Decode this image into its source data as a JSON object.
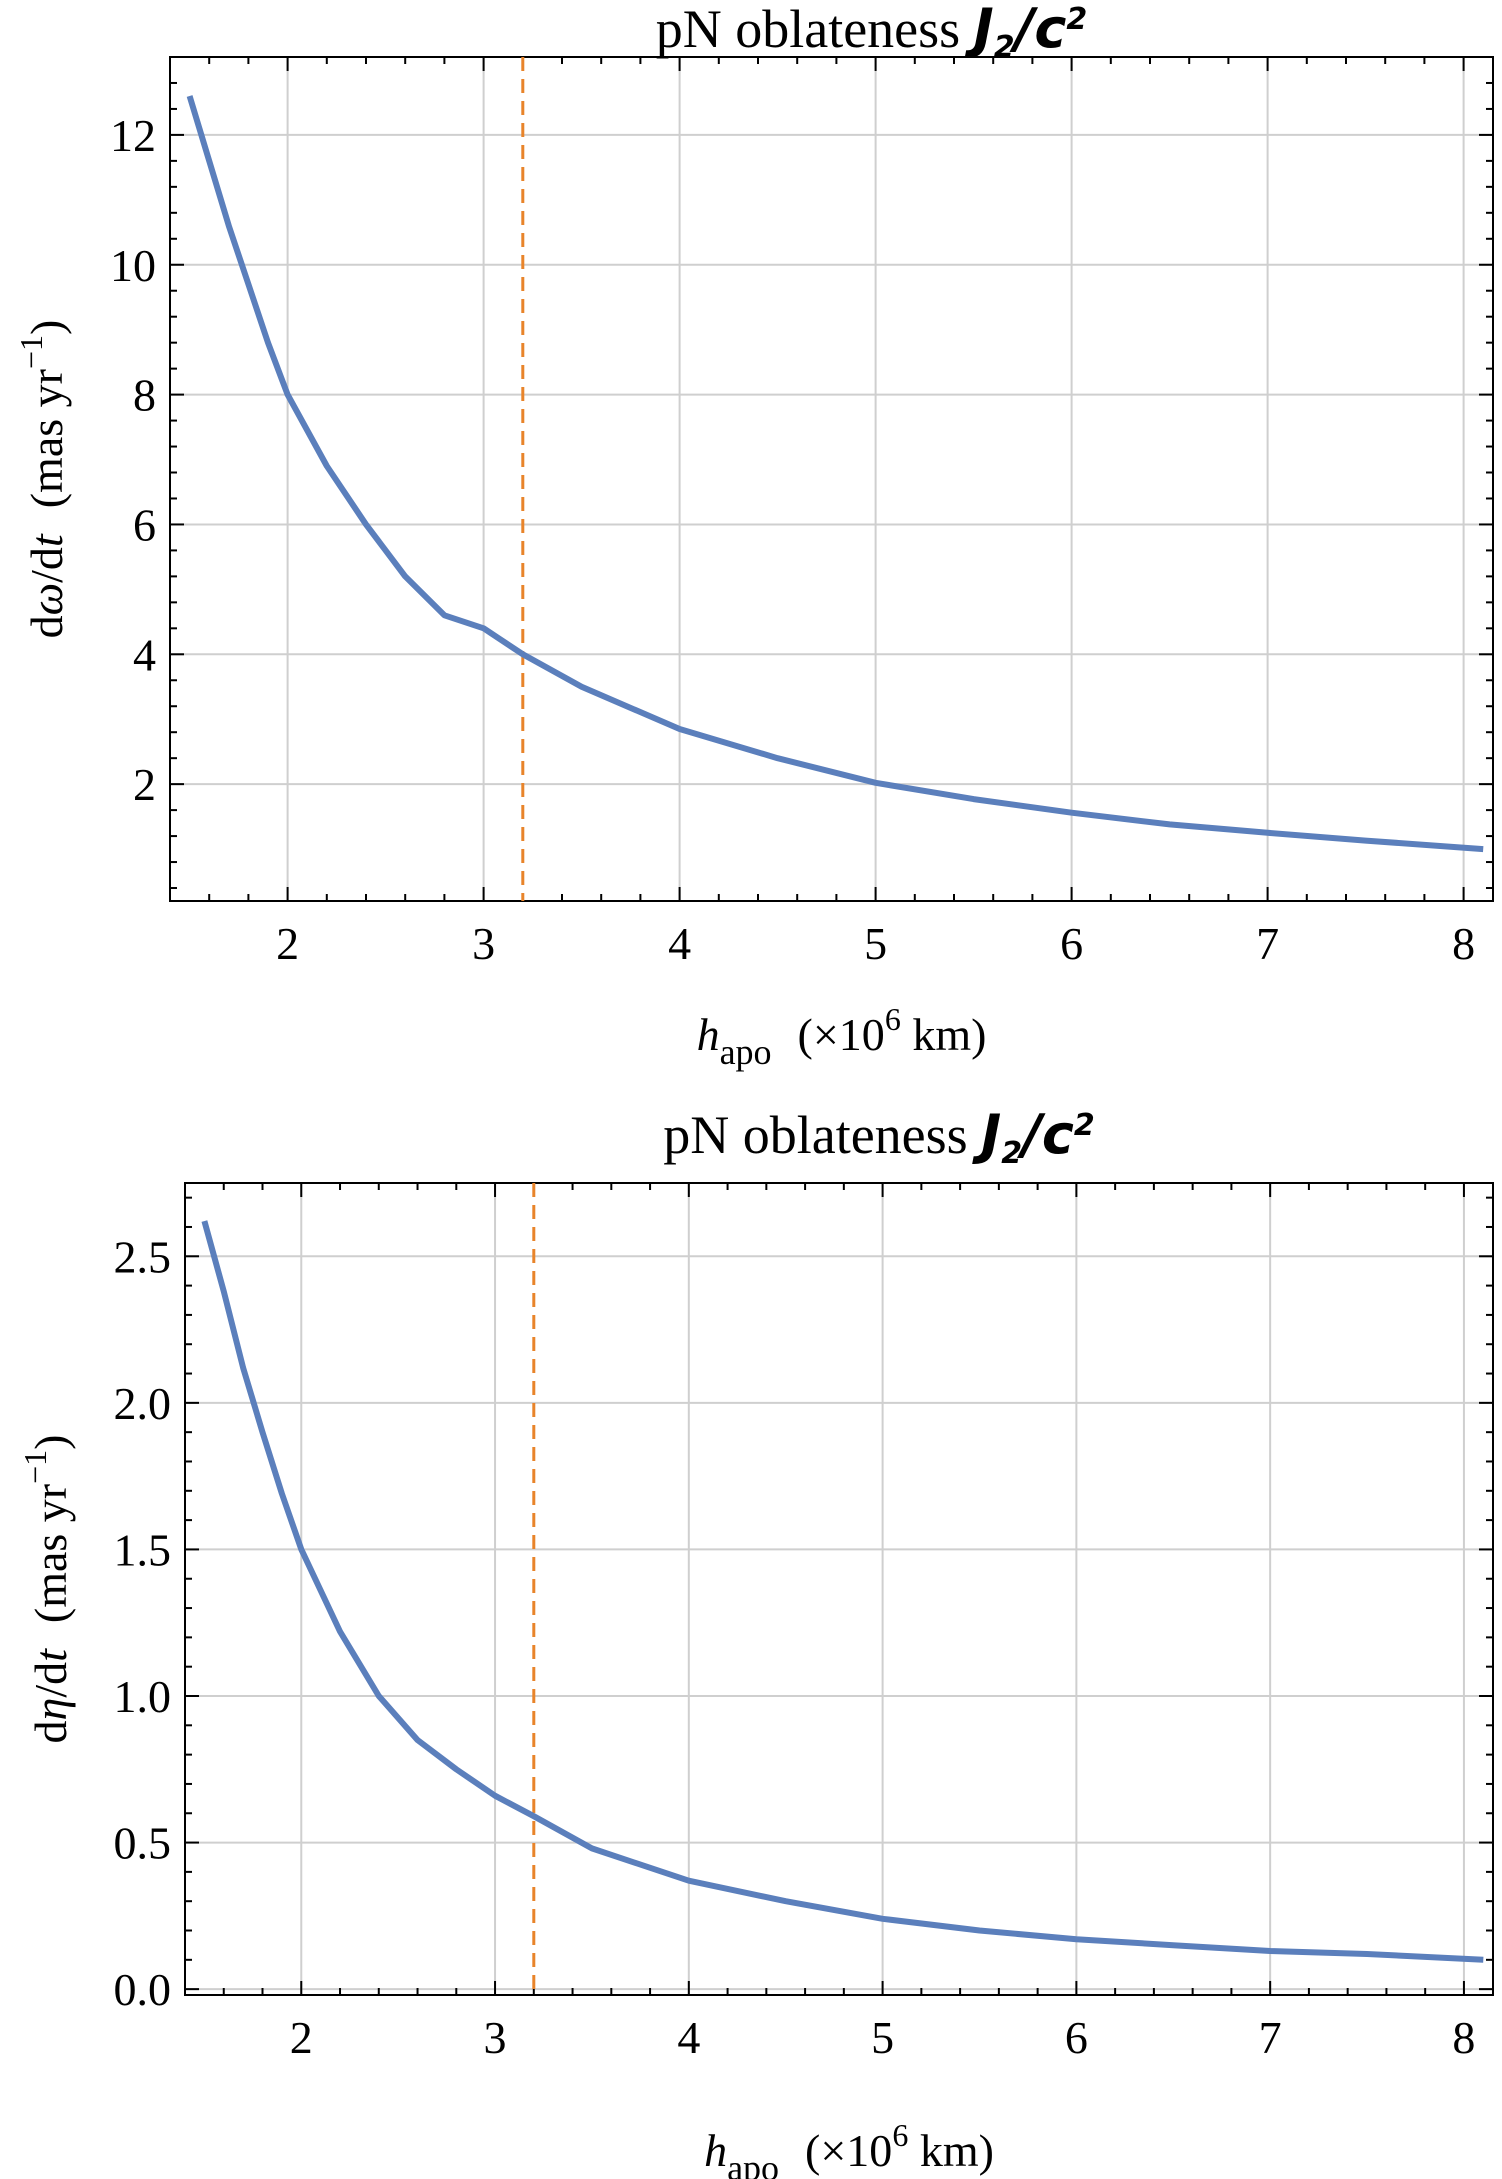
{
  "chart_data": [
    {
      "type": "line",
      "title": {
        "prefix": "pN oblateness ",
        "j": "J",
        "j_sub": "2",
        "slash": "/",
        "c": "c",
        "c_sup": "2"
      },
      "xlabel": {
        "h": "h",
        "h_sub": "apo",
        "unit_open": "(×10",
        "unit_exp": "6",
        "unit_close": " km)"
      },
      "ylabel": {
        "d1": "d",
        "var": "ω",
        "mid": "/d",
        "t": "t",
        "unit_open": "(mas  yr",
        "unit_exp": "−1",
        "unit_close": ")"
      },
      "xlim": [
        1.4,
        8.15
      ],
      "ylim": [
        0.2,
        13.2
      ],
      "xticks": [
        2,
        3,
        4,
        5,
        6,
        7,
        8
      ],
      "xtick_labels": [
        "2",
        "3",
        "4",
        "5",
        "6",
        "7",
        "8"
      ],
      "yticks": [
        2,
        4,
        6,
        8,
        10,
        12
      ],
      "ytick_labels": [
        "2",
        "4",
        "6",
        "8",
        "10",
        "12"
      ],
      "grid": true,
      "reference_line": {
        "x": 3.2,
        "style": "dashed",
        "color": "#e8842a"
      },
      "series": [
        {
          "name": "dω/dt",
          "color": "#5b7fbc",
          "x": [
            1.5,
            1.6,
            1.7,
            1.8,
            1.9,
            2.0,
            2.2,
            2.4,
            2.6,
            2.8,
            3.0,
            3.2,
            3.5,
            4.0,
            4.5,
            5.0,
            5.5,
            6.0,
            6.5,
            7.0,
            7.5,
            8.1
          ],
          "y": [
            12.6,
            11.6,
            10.6,
            9.7,
            8.8,
            8.0,
            6.9,
            6.0,
            5.2,
            4.6,
            4.4,
            4.0,
            3.5,
            2.85,
            2.4,
            2.02,
            1.77,
            1.56,
            1.38,
            1.25,
            1.13,
            1.0
          ]
        }
      ]
    },
    {
      "type": "line",
      "title": {
        "prefix": "pN oblateness ",
        "j": "J",
        "j_sub": "2",
        "slash": "/",
        "c": "c",
        "c_sup": "2"
      },
      "xlabel": {
        "h": "h",
        "h_sub": "apo",
        "unit_open": "(×10",
        "unit_exp": "6",
        "unit_close": " km)"
      },
      "ylabel": {
        "d1": "d",
        "var": "η",
        "mid": "/d",
        "t": "t",
        "unit_open": "(mas  yr",
        "unit_exp": "−1",
        "unit_close": ")"
      },
      "xlim": [
        1.4,
        8.15
      ],
      "ylim": [
        -0.02,
        2.75
      ],
      "xticks": [
        2,
        3,
        4,
        5,
        6,
        7,
        8
      ],
      "xtick_labels": [
        "2",
        "3",
        "4",
        "5",
        "6",
        "7",
        "8"
      ],
      "yticks": [
        0.0,
        0.5,
        1.0,
        1.5,
        2.0,
        2.5
      ],
      "ytick_labels": [
        "0.0",
        "0.5",
        "1.0",
        "1.5",
        "2.0",
        "2.5"
      ],
      "grid": true,
      "reference_line": {
        "x": 3.2,
        "style": "dashed",
        "color": "#e8842a"
      },
      "series": [
        {
          "name": "dη/dt",
          "color": "#5b7fbc",
          "x": [
            1.5,
            1.6,
            1.7,
            1.8,
            1.9,
            2.0,
            2.2,
            2.4,
            2.6,
            2.8,
            3.0,
            3.2,
            3.5,
            4.0,
            4.5,
            5.0,
            5.5,
            6.0,
            6.5,
            7.0,
            7.5,
            8.1
          ],
          "y": [
            2.62,
            2.38,
            2.12,
            1.9,
            1.69,
            1.5,
            1.22,
            1.0,
            0.85,
            0.75,
            0.66,
            0.59,
            0.48,
            0.37,
            0.3,
            0.24,
            0.2,
            0.17,
            0.15,
            0.13,
            0.12,
            0.1
          ]
        }
      ]
    }
  ]
}
